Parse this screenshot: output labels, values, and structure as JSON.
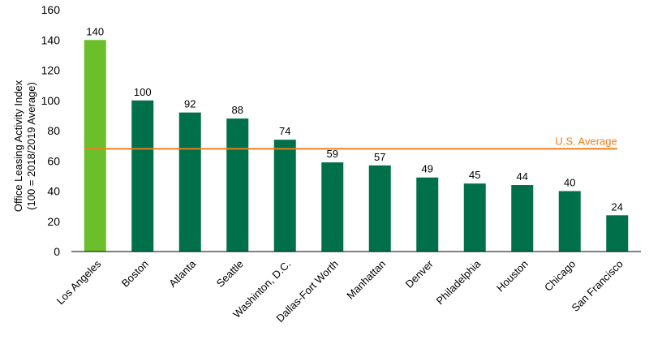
{
  "chart_data": {
    "type": "bar",
    "title": "",
    "xlabel": "",
    "ylabel_line1": "Office Leasing Activity Index",
    "ylabel_line2": "(100 = 2018/2019 Average)",
    "ylim": [
      0,
      160
    ],
    "yticks": [
      0,
      20,
      40,
      60,
      80,
      100,
      120,
      140,
      160
    ],
    "grid": false,
    "categories": [
      "Los Angeles",
      "Boston",
      "Atlanta",
      "Seattle",
      "Washinton, D.C.",
      "Dallas-Fort Worth",
      "Manhattan",
      "Denver",
      "Philadelphia",
      "Houston",
      "Chicago",
      "San Francisco"
    ],
    "values": [
      140,
      100,
      92,
      88,
      74,
      59,
      57,
      49,
      45,
      44,
      40,
      24
    ],
    "bar_colors": [
      "#6ABF2A",
      "#00704A",
      "#00704A",
      "#00704A",
      "#00704A",
      "#00704A",
      "#00704A",
      "#00704A",
      "#00704A",
      "#00704A",
      "#00704A",
      "#00704A"
    ],
    "reference_line": {
      "label": "U.S. Average",
      "value": 68,
      "color": "#F07E1B"
    }
  }
}
